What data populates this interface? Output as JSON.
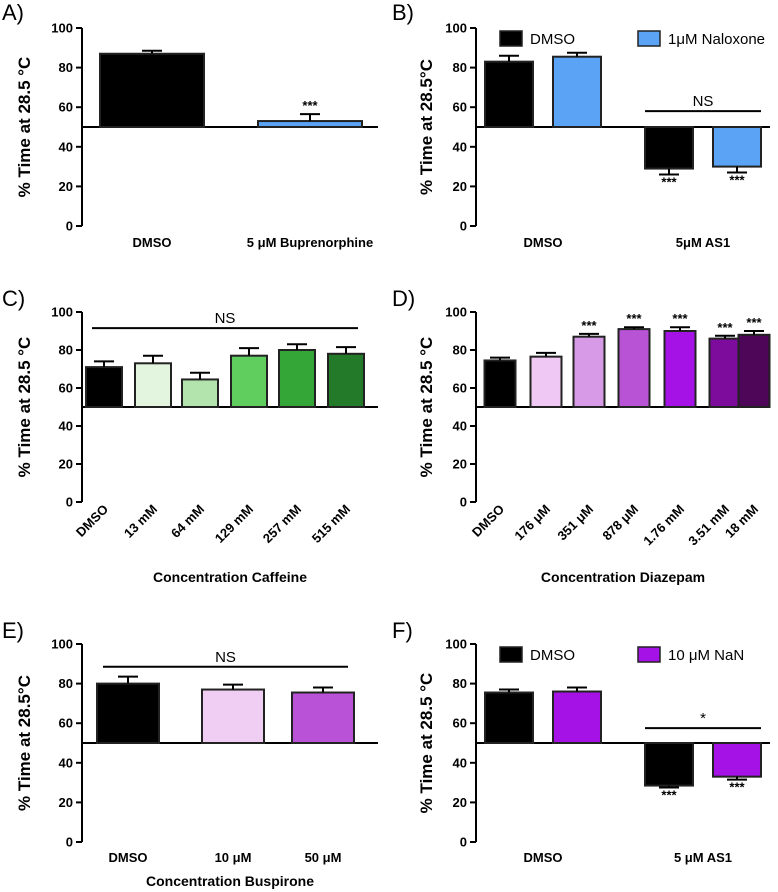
{
  "chart_data": [
    {
      "panel": "A)",
      "type": "bar",
      "baseline": 50,
      "ylabel": "% Time at 28.5 °C",
      "xlabel": "",
      "ylim": [
        0,
        100
      ],
      "yticks": [
        "0",
        "20",
        "40",
        "60",
        "80",
        "100"
      ],
      "categories": [
        "DMSO",
        "5 μM Buprenorphine"
      ],
      "series": [
        {
          "values": [
            87,
            53
          ],
          "errors": [
            1.5,
            3.5
          ],
          "colors": [
            "#000000",
            "#5ba3f5"
          ],
          "sig": [
            "",
            "***"
          ]
        }
      ],
      "ns": null,
      "legend": []
    },
    {
      "panel": "B)",
      "type": "bar",
      "baseline": 50,
      "ylabel": "% Time at 28.5°C",
      "xlabel": "",
      "ylim": [
        0,
        100
      ],
      "yticks": [
        "0",
        "20",
        "40",
        "60",
        "80",
        "100"
      ],
      "categories": [
        "DMSO",
        "5μM AS1"
      ],
      "series": [
        {
          "name": "DMSO",
          "color": "#000000",
          "values": [
            83,
            29
          ],
          "errors": [
            3,
            3
          ],
          "sig": [
            "",
            "***"
          ]
        },
        {
          "name": "1μM Naloxone",
          "color": "#5ba3f5",
          "values": [
            85.5,
            30
          ],
          "errors": [
            2,
            3
          ],
          "sig": [
            "",
            "***"
          ]
        }
      ],
      "ns": {
        "label": "NS",
        "group": 1,
        "y": 58
      },
      "legend": [
        "DMSO",
        "1μM Naloxone"
      ]
    },
    {
      "panel": "C)",
      "type": "bar",
      "baseline": 50,
      "ylabel": "% Time at 28.5 °C",
      "xlabel": "Concentration Caffeine",
      "ylim": [
        0,
        100
      ],
      "yticks": [
        "0",
        "20",
        "40",
        "60",
        "80",
        "100"
      ],
      "categories": [
        "DMSO",
        "13 mM",
        "64 mM",
        "129 mM",
        "257 mM",
        "515 mM"
      ],
      "series": [
        {
          "values": [
            71,
            73,
            64.5,
            77,
            80,
            78
          ],
          "errors": [
            3,
            4,
            3.5,
            4,
            3,
            3.5
          ],
          "colors": [
            "#000000",
            "#e3f5de",
            "#b4e4ae",
            "#5fce5f",
            "#33a637",
            "#237a28"
          ],
          "sig": [
            "",
            "",
            "",
            "",
            "",
            ""
          ]
        }
      ],
      "ns": {
        "label": "NS",
        "from": 0,
        "to": 5,
        "y": 91.5
      },
      "legend": []
    },
    {
      "panel": "D)",
      "type": "bar",
      "baseline": 50,
      "ylabel": "% Time at 28.5 °C",
      "xlabel": "Concentration Diazepam",
      "ylim": [
        0,
        100
      ],
      "yticks": [
        "0",
        "20",
        "40",
        "60",
        "80",
        "100"
      ],
      "categories": [
        "DMSO",
        "176 μM",
        "351 μM",
        "878 μM",
        "1.76 mM",
        "3.51 mM",
        "18 mM"
      ],
      "series": [
        {
          "values": [
            74.5,
            76.5,
            87,
            91,
            90,
            86,
            88
          ],
          "errors": [
            1.5,
            2,
            1.5,
            1,
            2,
            1.5,
            2
          ],
          "colors": [
            "#000000",
            "#efc8f3",
            "#d79ae6",
            "#b853d6",
            "#a412e6",
            "#7d0b9b",
            "#4e0758"
          ],
          "sig": [
            "",
            "",
            "***",
            "***",
            "***",
            "***",
            "***"
          ]
        }
      ],
      "ns": null,
      "legend": []
    },
    {
      "panel": "E)",
      "type": "bar",
      "baseline": 50,
      "ylabel": "% Time at 28.5°C",
      "xlabel": "Concentration Buspirone",
      "ylim": [
        0,
        100
      ],
      "yticks": [
        "0",
        "20",
        "40",
        "60",
        "80",
        "100"
      ],
      "categories": [
        "DMSO",
        "10 μM",
        "50 μM"
      ],
      "series": [
        {
          "values": [
            80,
            77,
            75.5
          ],
          "errors": [
            3.5,
            2.5,
            2.5
          ],
          "colors": [
            "#000000",
            "#f0cdf3",
            "#b952d6"
          ],
          "sig": [
            "",
            "",
            ""
          ]
        }
      ],
      "ns": {
        "label": "NS",
        "from": 0,
        "to": 2,
        "y": 88.5
      },
      "legend": []
    },
    {
      "panel": "F)",
      "type": "bar",
      "baseline": 50,
      "ylabel": "% Time at 28.5 °C",
      "xlabel": "",
      "ylim": [
        0,
        100
      ],
      "yticks": [
        "0",
        "20",
        "40",
        "60",
        "80",
        "100"
      ],
      "categories": [
        "DMSO",
        "5 μM AS1"
      ],
      "series": [
        {
          "name": "DMSO",
          "color": "#000000",
          "values": [
            75.5,
            28.5
          ],
          "errors": [
            1.5,
            1
          ],
          "sig": [
            "",
            "***"
          ]
        },
        {
          "name": "10 μM NaN",
          "color": "#a412e6",
          "values": [
            76,
            33
          ],
          "errors": [
            2,
            1.5
          ],
          "sig": [
            "",
            "***"
          ]
        }
      ],
      "ns": {
        "label": "*",
        "group": 1,
        "y": 57.5
      },
      "legend": [
        "DMSO",
        "10 μM NaN"
      ]
    }
  ]
}
